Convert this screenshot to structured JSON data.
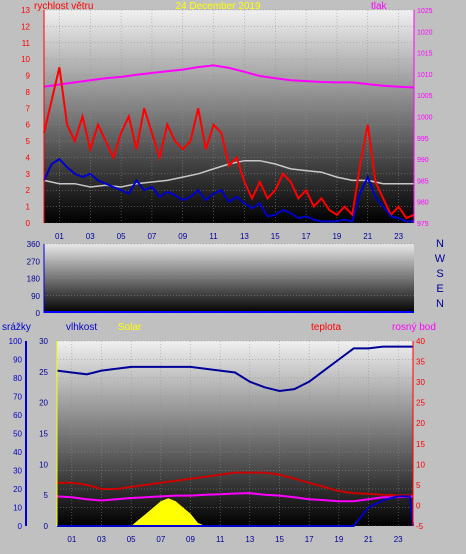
{
  "colors": {
    "wind_speed": "#ff0000",
    "wind_gust": "#0000cc",
    "pressure": "#ff00ff",
    "pressure_line_gray": "#c8c8c8",
    "humidity": "#000099",
    "temperature": "#cc0000",
    "dewpoint": "#ff00ff",
    "solar": "#ffff00",
    "precip": "#0000cc",
    "title": "#ffff00"
  },
  "chart_data": [
    {
      "type": "line",
      "date": "24 December 2019",
      "left_label": "rychlost větru",
      "right_label": "tlak",
      "left_ticks": [
        "0",
        "1",
        "2",
        "3",
        "4",
        "5",
        "6",
        "7",
        "8",
        "9",
        "10",
        "11",
        "12",
        "13"
      ],
      "right_ticks": [
        "975",
        "980",
        "985",
        "990",
        "995",
        "1000",
        "1005",
        "1010",
        "1015",
        "1020",
        "1025"
      ],
      "x_ticks": [
        "01",
        "03",
        "05",
        "07",
        "09",
        "11",
        "13",
        "15",
        "17",
        "19",
        "21",
        "23"
      ],
      "ylim_left": [
        0,
        13
      ],
      "ylim_right": [
        975,
        1025
      ],
      "x_range": [
        0,
        24
      ],
      "series": [
        {
          "key": "pressure",
          "axis": "right",
          "x": [
            0,
            1,
            2,
            3,
            4,
            5,
            6,
            7,
            8,
            9,
            10,
            11,
            12,
            13,
            14,
            15,
            16,
            17,
            18,
            19,
            20,
            21,
            22,
            23,
            24
          ],
          "values": [
            1007,
            1007.5,
            1008,
            1008.5,
            1009,
            1009.3,
            1009.8,
            1010.2,
            1010.6,
            1011,
            1011.6,
            1012,
            1011.4,
            1010.5,
            1009.5,
            1009,
            1008.5,
            1008.3,
            1008.1,
            1008,
            1008,
            1007.6,
            1007.2,
            1007,
            1006.8
          ]
        },
        {
          "key": "pressure_line_gray",
          "axis": "left",
          "x": [
            0,
            1,
            2,
            3,
            4,
            5,
            6,
            7,
            8,
            9,
            10,
            11,
            12,
            13,
            14,
            15,
            16,
            17,
            18,
            19,
            20,
            21,
            22,
            23,
            24
          ],
          "values": [
            2.6,
            2.4,
            2.4,
            2.2,
            2.3,
            2.2,
            2.4,
            2.5,
            2.6,
            2.8,
            3.0,
            3.3,
            3.6,
            3.8,
            3.8,
            3.6,
            3.3,
            3.2,
            3.1,
            2.8,
            2.6,
            2.6,
            2.4,
            2.4,
            2.4
          ]
        },
        {
          "key": "wind_speed",
          "axis": "left",
          "x": [
            0,
            0.5,
            1,
            1.5,
            2,
            2.5,
            3,
            3.5,
            4,
            4.5,
            5,
            5.5,
            6,
            6.5,
            7,
            7.5,
            8,
            8.5,
            9,
            9.5,
            10,
            10.5,
            11,
            11.5,
            12,
            12.5,
            13,
            13.5,
            14,
            14.5,
            15,
            15.5,
            16,
            16.5,
            17,
            17.5,
            18,
            18.5,
            19,
            19.5,
            20,
            20.5,
            21,
            21.5,
            22,
            22.5,
            23,
            23.5,
            24
          ],
          "values": [
            5.5,
            7.5,
            9.5,
            6.0,
            5.0,
            6.5,
            4.5,
            6.0,
            5.0,
            4.0,
            5.5,
            6.5,
            4.5,
            7.0,
            5.5,
            4.0,
            6.0,
            5.0,
            4.5,
            5.0,
            7.0,
            4.5,
            6.0,
            5.5,
            3.5,
            4.0,
            2.5,
            1.5,
            2.5,
            1.5,
            2.0,
            3.0,
            2.5,
            1.5,
            2.0,
            1.0,
            1.5,
            0.8,
            0.5,
            1.0,
            0.5,
            3.5,
            6.0,
            2.5,
            1.5,
            0.5,
            1.0,
            0.3,
            0.5
          ]
        },
        {
          "key": "wind_gust",
          "axis": "left",
          "x": [
            0,
            0.5,
            1,
            1.5,
            2,
            2.5,
            3,
            3.5,
            4,
            4.5,
            5,
            5.5,
            6,
            6.5,
            7,
            7.5,
            8,
            8.5,
            9,
            9.5,
            10,
            10.5,
            11,
            11.5,
            12,
            12.5,
            13,
            13.5,
            14,
            14.5,
            15,
            15.5,
            16,
            16.5,
            17,
            17.5,
            18,
            18.5,
            19,
            19.5,
            20,
            20.5,
            21,
            21.5,
            22,
            22.5,
            23,
            23.5,
            24
          ],
          "values": [
            2.6,
            3.6,
            3.9,
            3.4,
            3.0,
            2.8,
            3.0,
            2.6,
            2.4,
            2.2,
            2.0,
            1.8,
            2.6,
            2.0,
            2.2,
            1.6,
            1.9,
            1.7,
            1.4,
            1.6,
            2.0,
            1.4,
            1.8,
            2.0,
            1.3,
            1.6,
            1.2,
            0.9,
            1.2,
            0.4,
            0.5,
            0.8,
            0.6,
            0.3,
            0.4,
            0.2,
            0.1,
            0.1,
            0.1,
            0.2,
            0.1,
            1.8,
            2.8,
            1.6,
            1.0,
            0.4,
            0.3,
            0.1,
            0.1
          ]
        }
      ]
    },
    {
      "type": "line",
      "left_ticks": [
        "0",
        "90",
        "180",
        "270",
        "360"
      ],
      "right_letters": [
        "N",
        "W",
        "S",
        "E",
        "N"
      ],
      "ylim": [
        0,
        360
      ]
    },
    {
      "type": "line",
      "labels": {
        "precip": "srážky",
        "humidity": "vlhkost",
        "solar": "Solar",
        "temperature": "teplota",
        "dewpoint": "rosný bod"
      },
      "precip_ticks": [
        "0",
        "10",
        "20",
        "30",
        "40",
        "50",
        "60",
        "70",
        "80",
        "90",
        "100"
      ],
      "solar_ticks": [
        "0",
        "5",
        "10",
        "15",
        "20",
        "25",
        "30"
      ],
      "temp_ticks": [
        "-5",
        "0",
        "5",
        "10",
        "15",
        "20",
        "25",
        "30",
        "35",
        "40"
      ],
      "x_ticks": [
        "01",
        "03",
        "05",
        "07",
        "09",
        "11",
        "13",
        "15",
        "17",
        "19",
        "21",
        "23"
      ],
      "x_range": [
        0,
        24
      ],
      "series": [
        {
          "key": "humidity",
          "axis": "precip",
          "ylim": [
            0,
            100
          ],
          "x": [
            0,
            1,
            2,
            3,
            4,
            5,
            6,
            7,
            8,
            9,
            10,
            11,
            12,
            13,
            14,
            15,
            16,
            17,
            18,
            19,
            20,
            21,
            22,
            23,
            24
          ],
          "values": [
            84,
            83,
            82,
            84,
            85,
            86,
            86,
            86,
            86,
            86,
            85,
            84,
            83,
            78,
            75,
            73,
            74,
            78,
            84,
            90,
            96,
            96,
            97,
            97,
            97
          ]
        },
        {
          "key": "temperature",
          "axis": "temp",
          "ylim": [
            -5,
            40
          ],
          "x": [
            0,
            1,
            2,
            3,
            4,
            5,
            6,
            7,
            8,
            9,
            10,
            11,
            12,
            13,
            14,
            15,
            16,
            17,
            18,
            19,
            20,
            21,
            22,
            23,
            24
          ],
          "values": [
            5.5,
            5.5,
            5,
            4,
            4,
            4.5,
            5,
            5.5,
            6,
            6.5,
            7,
            7.5,
            8,
            8,
            8,
            7.5,
            6.5,
            5.5,
            4.5,
            3.5,
            3.0,
            2.8,
            2.6,
            2.5,
            2.5
          ]
        },
        {
          "key": "dewpoint",
          "axis": "temp",
          "ylim": [
            -5,
            40
          ],
          "x": [
            0,
            1,
            2,
            3,
            4,
            5,
            6,
            7,
            8,
            9,
            10,
            11,
            12,
            13,
            14,
            15,
            16,
            17,
            18,
            19,
            20,
            21,
            22,
            23,
            24
          ],
          "values": [
            2.2,
            2.0,
            1.5,
            1.2,
            1.5,
            1.8,
            2.0,
            2.2,
            2.4,
            2.4,
            2.6,
            2.7,
            2.9,
            3.0,
            2.6,
            2.4,
            2.0,
            1.5,
            1.3,
            1.0,
            1.0,
            1.5,
            2.0,
            2.0,
            2.2
          ]
        },
        {
          "key": "solar",
          "axis": "solar",
          "ylim": [
            0,
            30
          ],
          "kind": "area",
          "x": [
            0,
            4,
            5,
            5.5,
            6,
            6.5,
            7,
            7.5,
            8,
            8.5,
            9,
            9.5,
            10,
            24
          ],
          "values": [
            0,
            0,
            0,
            1.0,
            2.0,
            3.0,
            4.0,
            4.5,
            4.0,
            3.0,
            2.0,
            0.5,
            0,
            0
          ]
        },
        {
          "key": "precip",
          "axis": "precip",
          "ylim": [
            0,
            100
          ],
          "x": [
            0,
            20,
            21,
            22,
            23,
            23.8,
            24
          ],
          "values": [
            0,
            0,
            10,
            14,
            16,
            16,
            0
          ]
        }
      ]
    }
  ]
}
